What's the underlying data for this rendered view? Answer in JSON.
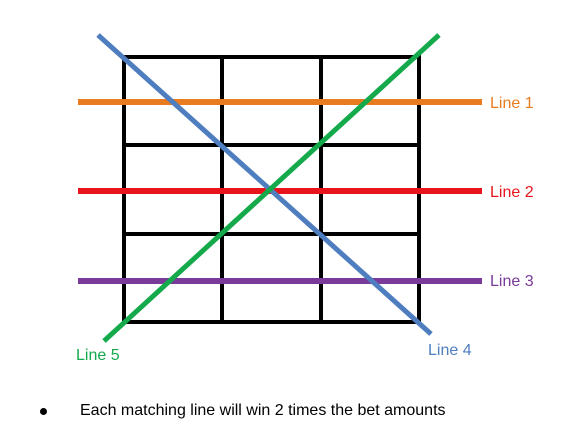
{
  "grid": {
    "rows": 3,
    "cols": 3,
    "color": "#000000"
  },
  "paylines": [
    {
      "id": "line1",
      "label": "Line 1",
      "color": "#E97C1E"
    },
    {
      "id": "line2",
      "label": "Line 2",
      "color": "#E8141B"
    },
    {
      "id": "line3",
      "label": "Line 3",
      "color": "#7A3A9A"
    },
    {
      "id": "line4",
      "label": "Line 4",
      "color": "#4E7EBF"
    },
    {
      "id": "line5",
      "label": "Line 5",
      "color": "#14AA4B"
    }
  ],
  "note": {
    "text": "Each matching line will win 2 times the bet amounts"
  }
}
